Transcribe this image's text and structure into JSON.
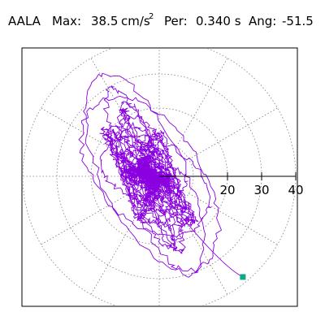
{
  "title": {
    "station": "AALA",
    "max_label": "Max:",
    "max_value": "38.5",
    "max_unit": "cm/s",
    "max_unit_exp": "2",
    "per_label": "Per:",
    "per_value": "0.340 s",
    "ang_label": "Ang:",
    "ang_value": "-51.5"
  },
  "chart_data": {
    "type": "scatter",
    "plot": "polar particle-motion (orbit) plot",
    "radial_ticks": [
      "20",
      "30",
      "40"
    ],
    "radial_tick_values": [
      20,
      30,
      40
    ],
    "grid_circles": [
      10,
      20,
      30,
      40
    ],
    "grid_spoke_angles_deg": [
      0,
      30,
      60,
      90,
      120,
      150,
      180,
      210,
      240,
      270,
      300,
      330
    ],
    "r_max": 40,
    "orbit_max": 38.5,
    "orbit_angle_deg": -51.5,
    "end_point": {
      "x": 24.5,
      "y": -29.5
    },
    "colors": {
      "trace": "#8a00e0",
      "marker": "#10a882",
      "grid": "#808080",
      "axis": "#000000"
    }
  }
}
